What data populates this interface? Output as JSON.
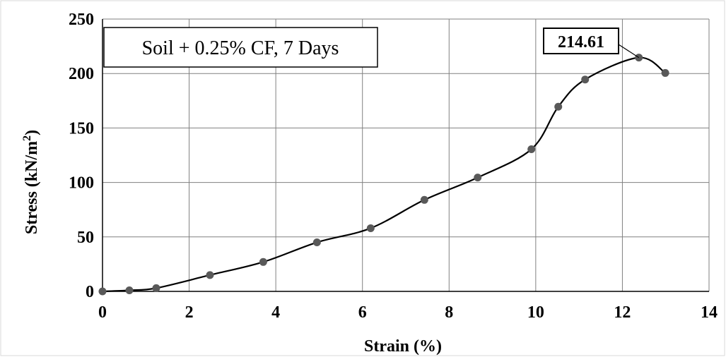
{
  "chart_data": {
    "type": "line",
    "title": "Soil + 0.25% CF, 7 Days",
    "xlabel": "Strain (%)",
    "ylabel_main": "Stress (kN/m",
    "ylabel_sup": "2",
    "ylabel_close": ")",
    "xlim": [
      0,
      14
    ],
    "ylim": [
      0,
      250
    ],
    "xticks": [
      "0",
      "2",
      "4",
      "6",
      "8",
      "10",
      "12",
      "14"
    ],
    "yticks": [
      "0",
      "50",
      "100",
      "150",
      "200",
      "250"
    ],
    "grid": true,
    "series": [
      {
        "color": "#000000",
        "marker_color": "#595959",
        "x": [
          0,
          0.62,
          1.24,
          2.48,
          3.71,
          4.95,
          6.19,
          7.43,
          8.66,
          9.9,
          10.52,
          11.14,
          12.38,
          12.99
        ],
        "y": [
          0,
          1,
          3,
          15,
          27,
          45,
          58,
          84,
          104.5,
          130.5,
          169.5,
          194.5,
          214.61,
          200.5
        ]
      }
    ],
    "annotation": {
      "text": "214.61",
      "x": 12.38,
      "y": 214.61
    }
  }
}
